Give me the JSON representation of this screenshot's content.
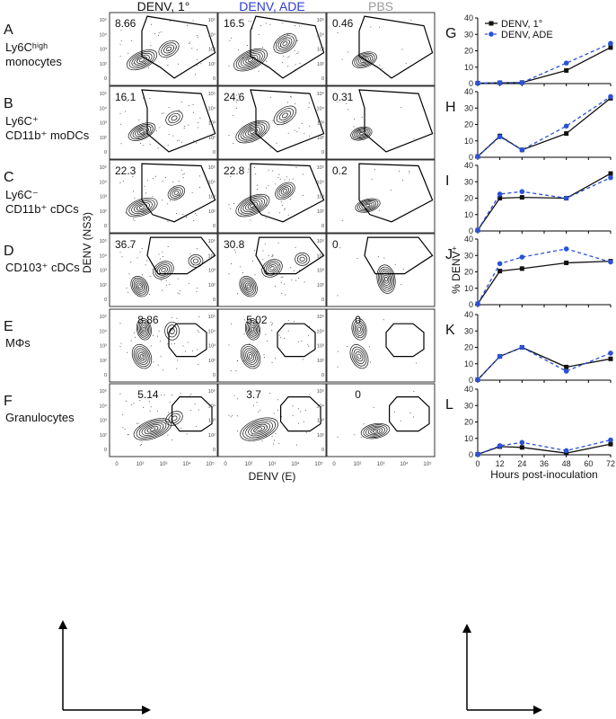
{
  "columns": [
    {
      "label": "DENV, 1°",
      "color": "#111111"
    },
    {
      "label": "DENV, ADE",
      "color": "#2a3bd6"
    },
    {
      "label": "PBS",
      "color": "#9a9a9a"
    }
  ],
  "flow": {
    "x_ticks": [
      "0",
      "10²",
      "10³",
      "10⁴",
      "10⁵"
    ],
    "y_ticks": [
      "10⁵",
      "10⁴",
      "10³",
      "10²",
      "0"
    ],
    "xlabel": "DENV (E)",
    "ylabel": "DENV (NS3)"
  },
  "rows": [
    {
      "letter": "A",
      "label_lines": [
        "Ly6Cʰⁱᵍʰ",
        "monocytes"
      ],
      "values": [
        "8.66",
        "16.5",
        "0.46"
      ],
      "right_letter": "G"
    },
    {
      "letter": "B",
      "label_lines": [
        "Ly6C⁺",
        "CD11b⁺ moDCs"
      ],
      "values": [
        "16.1",
        "24.6",
        "0.31"
      ],
      "right_letter": "H"
    },
    {
      "letter": "C",
      "label_lines": [
        "Ly6C⁻",
        "CD11b⁺ cDCs"
      ],
      "values": [
        "22.3",
        "22.8",
        "0.2"
      ],
      "right_letter": "I"
    },
    {
      "letter": "D",
      "label_lines": [
        "CD103⁺ cDCs"
      ],
      "values": [
        "36.7",
        "30.8",
        "0"
      ],
      "right_letter": "J"
    },
    {
      "letter": "E",
      "label_lines": [
        "MΦs"
      ],
      "values": [
        "8.86",
        "5.02",
        "0"
      ],
      "right_letter": "K"
    },
    {
      "letter": "F",
      "label_lines": [
        "Granulocytes"
      ],
      "values": [
        "5.14",
        "3.7",
        "0"
      ],
      "right_letter": "L"
    }
  ],
  "chart_data": {
    "type": "line",
    "x": [
      0,
      12,
      24,
      48,
      72
    ],
    "x_ticks": [
      "0",
      "12",
      "24",
      "36",
      "48",
      "60",
      "72"
    ],
    "y_ticks": [
      "0",
      "10",
      "20",
      "30",
      "40"
    ],
    "xlabel": "Hours post-inoculation",
    "ylabel": "% DENV⁺",
    "ylim": [
      0,
      40
    ],
    "xlim": [
      0,
      72
    ],
    "legend_position": "top-left",
    "series": [
      {
        "name": "DENV, 1°",
        "color": "#111111",
        "marker": "square",
        "dash": "solid"
      },
      {
        "name": "DENV, ADE",
        "color": "#2a52d6",
        "marker": "circle",
        "dash": "dashed"
      }
    ],
    "panels": [
      {
        "letter": "G",
        "primary": [
          0.3,
          0.5,
          0.6,
          8.0,
          22.0
        ],
        "ade": [
          0.3,
          0.5,
          0.6,
          12.5,
          24.5
        ]
      },
      {
        "letter": "H",
        "primary": [
          0.5,
          13.0,
          4.5,
          14.5,
          36.0
        ],
        "ade": [
          0.5,
          12.5,
          4.5,
          19.0,
          37.0
        ]
      },
      {
        "letter": "I",
        "primary": [
          0.5,
          20.0,
          20.5,
          20.0,
          35.0
        ],
        "ade": [
          0.5,
          22.5,
          24.0,
          20.0,
          32.5
        ]
      },
      {
        "letter": "J",
        "primary": [
          0.5,
          20.5,
          22.0,
          25.5,
          26.5
        ],
        "ade": [
          0.5,
          25.0,
          29.0,
          34.0,
          26.0
        ]
      },
      {
        "letter": "K",
        "primary": [
          0.3,
          14.5,
          20.0,
          8.0,
          13.0
        ],
        "ade": [
          0.3,
          14.5,
          20.0,
          5.5,
          16.5
        ]
      },
      {
        "letter": "L",
        "primary": [
          0.3,
          5.0,
          4.5,
          1.0,
          6.5
        ],
        "ade": [
          0.3,
          5.5,
          7.5,
          2.5,
          9.0
        ]
      }
    ]
  }
}
